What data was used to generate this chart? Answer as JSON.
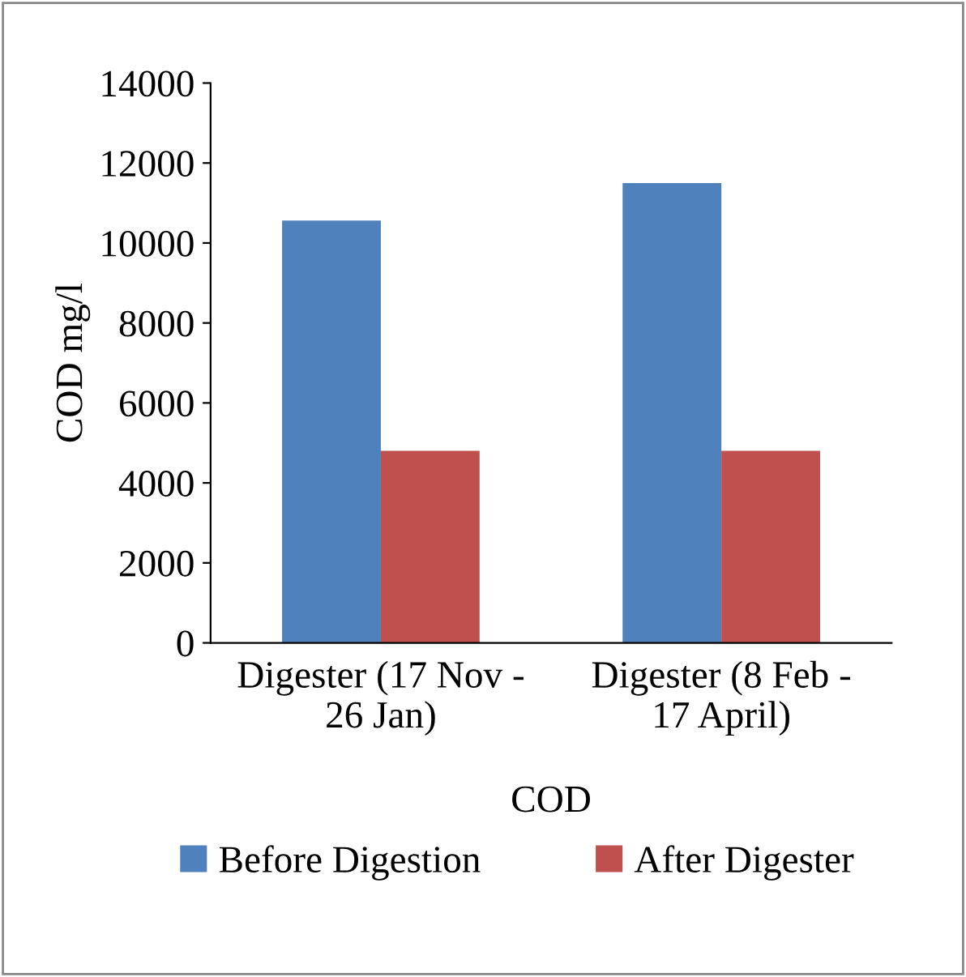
{
  "chart_data": {
    "type": "bar",
    "xlabel": "COD",
    "ylabel": "COD mg/l",
    "categories": [
      "Digester (17 Nov -\n26 Jan)",
      "Digester (8 Feb -\n17 April)"
    ],
    "series": [
      {
        "name": "Before Digestion",
        "color": "#4f81bd",
        "values": [
          10560,
          11500
        ]
      },
      {
        "name": "After Digester",
        "color": "#c0504d",
        "values": [
          4800,
          4800
        ]
      }
    ],
    "ylim": [
      0,
      14000
    ],
    "yticks": [
      0,
      2000,
      4000,
      6000,
      8000,
      10000,
      12000,
      14000
    ],
    "grid": false,
    "legend": "bottom"
  }
}
